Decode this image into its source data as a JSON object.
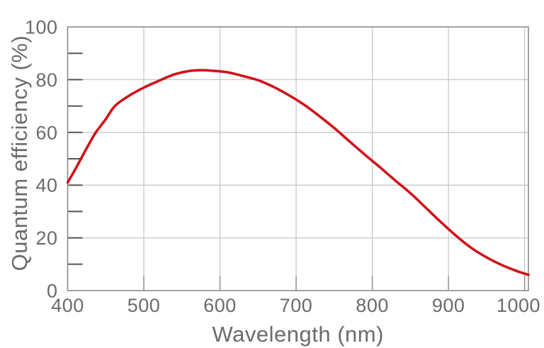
{
  "chart_data": {
    "type": "line",
    "title": "",
    "xlabel": "Wavelength (nm)",
    "ylabel": "Quantum efficiency (%)",
    "xlim": [
      400,
      1005
    ],
    "ylim": [
      0,
      100
    ],
    "x_ticks": [
      400,
      500,
      600,
      700,
      800,
      900,
      1000
    ],
    "y_ticks": [
      0,
      20,
      40,
      60,
      80,
      100
    ],
    "y_minor_tick_step": 10,
    "grid": true,
    "legend": false,
    "series": [
      {
        "name": "Quantum efficiency",
        "color": "#d0121a",
        "points": [
          [
            400,
            41
          ],
          [
            410,
            46
          ],
          [
            425,
            54
          ],
          [
            437,
            60
          ],
          [
            450,
            65
          ],
          [
            462,
            70
          ],
          [
            480,
            73.8
          ],
          [
            500,
            77
          ],
          [
            520,
            79.6
          ],
          [
            540,
            82
          ],
          [
            560,
            83.3
          ],
          [
            575,
            83.6
          ],
          [
            590,
            83.4
          ],
          [
            610,
            82.8
          ],
          [
            630,
            81.4
          ],
          [
            650,
            79.8
          ],
          [
            670,
            77.3
          ],
          [
            690,
            74.2
          ],
          [
            710,
            70.6
          ],
          [
            730,
            66.3
          ],
          [
            750,
            61.7
          ],
          [
            770,
            56.6
          ],
          [
            790,
            51.6
          ],
          [
            810,
            46.8
          ],
          [
            830,
            41.8
          ],
          [
            850,
            37
          ],
          [
            870,
            31.5
          ],
          [
            890,
            26
          ],
          [
            910,
            20.8
          ],
          [
            930,
            16.2
          ],
          [
            950,
            12.6
          ],
          [
            970,
            9.7
          ],
          [
            990,
            7.4
          ],
          [
            1005,
            6
          ]
        ]
      }
    ],
    "colors": {
      "line": "#d0121a",
      "grid": "#c7c7c7",
      "axis_border": "#8c8c8c",
      "tick": "#555555",
      "text": "#6b6b6b",
      "background": "#ffffff"
    }
  }
}
